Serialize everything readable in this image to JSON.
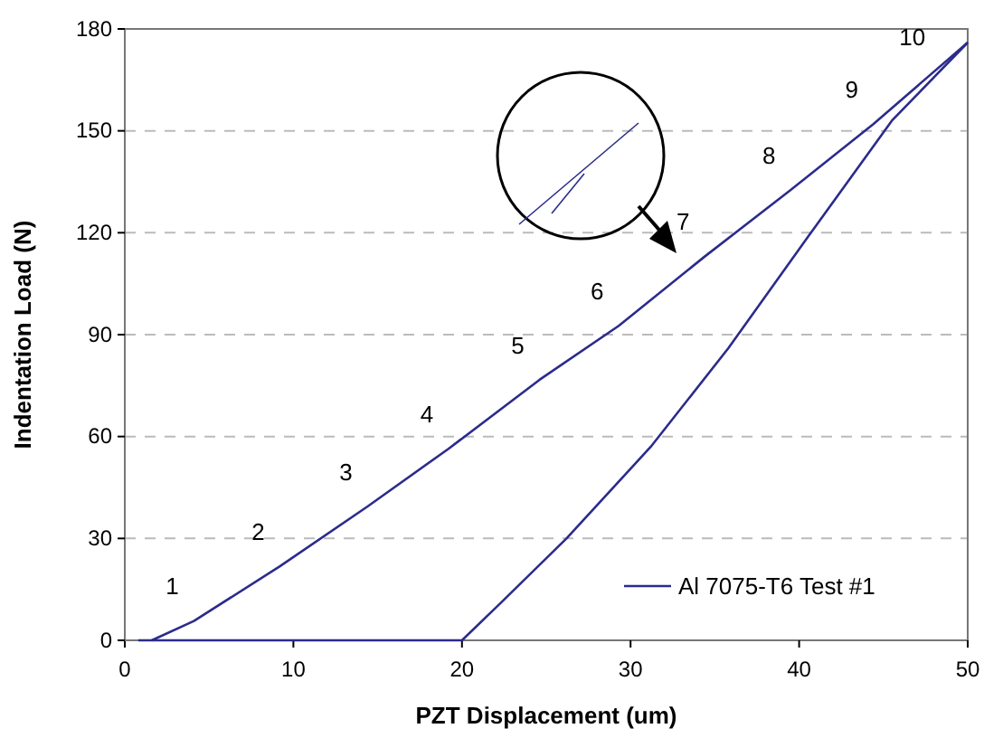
{
  "chart_data": {
    "type": "line",
    "xlabel": "PZT Displacement (um)",
    "ylabel": "Indentation Load (N)",
    "xlim": [
      0,
      50
    ],
    "xticks": [
      0,
      10,
      20,
      30,
      40,
      50
    ],
    "ylim": [
      0,
      180
    ],
    "yticks": [
      0,
      30,
      60,
      90,
      120,
      150,
      180
    ],
    "grid": "y",
    "legend": "bottom right",
    "marker": "none",
    "line_style": "solid",
    "series": [
      {
        "name": "Al 7075-T6 Test #1",
        "color": "#2b2b8c",
        "x": [
          1.6,
          4.1,
          9.2,
          14.4,
          19.2,
          24.6,
          29.3,
          34.4,
          39.5,
          44.4,
          50
        ],
        "values": [
          0,
          5.7,
          21.8,
          39.4,
          56.4,
          76.7,
          92.6,
          113,
          132.6,
          152,
          176
        ]
      },
      {
        "color": "#2b2b8c",
        "x": [
          0.8,
          10,
          20,
          22.3,
          26.2,
          31.2,
          35.8,
          40.7,
          45.5,
          50
        ],
        "values": [
          0,
          0,
          0,
          11,
          30,
          57,
          86,
          120,
          153,
          176
        ]
      }
    ],
    "annotations": [
      {
        "text": "1",
        "x": 4.1,
        "y": 5.7
      },
      {
        "text": "2",
        "x": 9.2,
        "y": 21.8
      },
      {
        "text": "3",
        "x": 14.4,
        "y": 39.4
      },
      {
        "text": "4",
        "x": 19.2,
        "y": 56.4
      },
      {
        "text": "5",
        "x": 24.6,
        "y": 76.7
      },
      {
        "text": "6",
        "x": 29.3,
        "y": 92.6
      },
      {
        "text": "7",
        "x": 34.4,
        "y": 113
      },
      {
        "text": "8",
        "x": 39.5,
        "y": 132.6
      },
      {
        "text": "9",
        "x": 44.4,
        "y": 152
      },
      {
        "text": "10",
        "x": 48,
        "y": 167.4
      }
    ]
  }
}
